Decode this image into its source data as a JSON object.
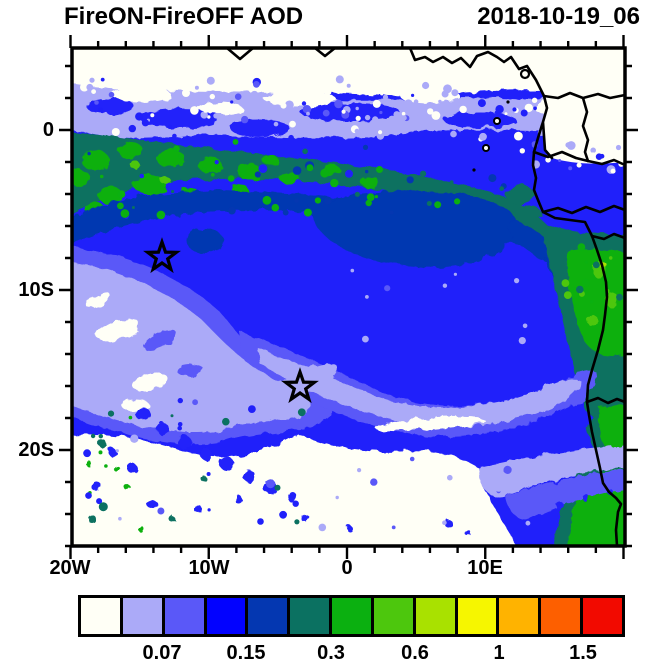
{
  "header": {
    "title": "FireON-FireOFF AOD",
    "timestamp": "2018-10-19_06"
  },
  "axes": {
    "y_tick_labels": [
      "0",
      "10S",
      "20S"
    ],
    "x_tick_labels": [
      "20W",
      "10W",
      "0",
      "10E"
    ]
  },
  "colorbar": {
    "cell_colors": [
      "#fffff6",
      "#abaaf8",
      "#5a58f8",
      "#0202ff",
      "#0437b1",
      "#0b7161",
      "#0bb010",
      "#4dc70d",
      "#a9e100",
      "#f6f600",
      "#ffb300",
      "#fd5f00",
      "#f20a00"
    ],
    "boundary_labels": [
      "0.07",
      "0.15",
      "0.3",
      "0.6",
      "1",
      "1.5"
    ],
    "all_levels": [
      0.05,
      0.07,
      0.1,
      0.15,
      0.2,
      0.3,
      0.4,
      0.6,
      0.8,
      1,
      1.2,
      1.5
    ]
  },
  "chart_data": {
    "type": "heatmap",
    "title": "FireON-FireOFF AOD",
    "timestamp": "2018-10-19_06",
    "projection": "lat-lon map, South-East Atlantic / West-Central Africa",
    "x_axis": {
      "kind": "longitude",
      "ticks": [
        "20W",
        "10W",
        "0",
        "10E"
      ],
      "range_approx": [
        "20W",
        "20E"
      ]
    },
    "y_axis": {
      "kind": "latitude",
      "ticks": [
        "0",
        "10S",
        "20S"
      ],
      "range_approx": [
        "5N",
        "26S"
      ]
    },
    "contour_levels": [
      0.05,
      0.07,
      0.1,
      0.15,
      0.2,
      0.3,
      0.4,
      0.6,
      0.8,
      1,
      1.2,
      1.5
    ],
    "palette": [
      "#fffff6",
      "#abaaf8",
      "#5a58f8",
      "#0202ff",
      "#0437b1",
      "#0b7161",
      "#0bb010",
      "#4dc70d",
      "#a9e100",
      "#f6f600",
      "#ffb300",
      "#fd5f00",
      "#f20a00"
    ],
    "markers": [
      {
        "symbol": "open-star",
        "lon_approx": "13W",
        "lat_approx": "8S"
      },
      {
        "symbol": "open-star",
        "lon_approx": "3W",
        "lat_approx": "16S"
      }
    ],
    "field_summary": [
      {
        "region": "north of equator / Gulf of Guinea and Nigeria",
        "aod_diff": "< 0.05 (white) with speckled 0.05-0.1 transition band"
      },
      {
        "region": "equatorial band 1S-6S across basin",
        "aod_diff": "0.2-0.4 speckled dark-teal/green"
      },
      {
        "region": "central South Atlantic 5S-12S",
        "aod_diff": "0.15-0.2 (navy core) within broad 0.1-0.15 blue"
      },
      {
        "region": "interior Angola along coast",
        "aod_diff": "0.3-0.6 (green patch, local 0.6-0.8)"
      },
      {
        "region": "southwest and south-central ocean 12S-22S",
        "aod_diff": "0.05-0.1 lavender swirls fading to < 0.05 white"
      },
      {
        "region": "far south 22S-26S",
        "aod_diff": "< 0.05 with scattered 0.1-0.3 speckles"
      }
    ]
  }
}
